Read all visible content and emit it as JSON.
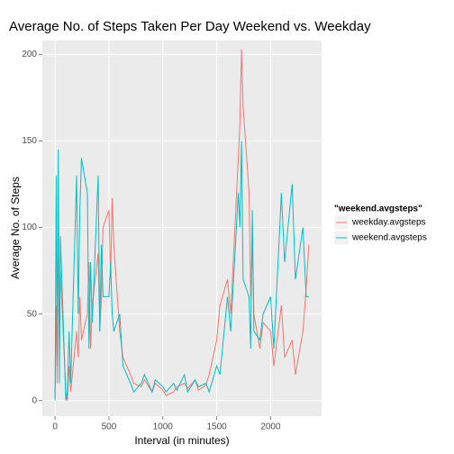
{
  "chart_data": {
    "type": "line",
    "title": "Average No. of Steps Taken Per Day Weekend vs. Weekday",
    "x_label": "Interval (in minutes)",
    "y_label": "Average No. of Steps",
    "legend_title": "\"weekend.avgsteps\"",
    "legend_position": "right",
    "grid": true,
    "x": [
      0,
      10,
      20,
      30,
      40,
      50,
      100,
      115,
      130,
      145,
      200,
      215,
      230,
      245,
      300,
      315,
      330,
      345,
      400,
      415,
      430,
      445,
      500,
      515,
      530,
      545,
      600,
      630,
      700,
      730,
      800,
      830,
      900,
      930,
      1000,
      1030,
      1100,
      1130,
      1200,
      1230,
      1300,
      1330,
      1400,
      1430,
      1500,
      1530,
      1600,
      1630,
      1700,
      1715,
      1730,
      1745,
      1800,
      1815,
      1830,
      1845,
      1900,
      1930,
      2000,
      2030,
      2100,
      2130,
      2200,
      2230,
      2300,
      2330,
      2355
    ],
    "series": [
      {
        "name": "weekday.avgsteps",
        "color": "#F8766D",
        "values": [
          2,
          55,
          10,
          108,
          30,
          75,
          5,
          0,
          20,
          5,
          40,
          25,
          60,
          35,
          50,
          80,
          30,
          55,
          85,
          40,
          60,
          100,
          110,
          70,
          117,
          90,
          40,
          25,
          15,
          10,
          8,
          12,
          5,
          10,
          6,
          3,
          5,
          8,
          10,
          7,
          12,
          6,
          9,
          15,
          35,
          55,
          70,
          50,
          140,
          160,
          203,
          170,
          120,
          60,
          95,
          50,
          30,
          45,
          40,
          20,
          55,
          25,
          35,
          15,
          40,
          65,
          90
        ]
      },
      {
        "name": "weekend.avgsteps",
        "color": "#00BFC4",
        "values": [
          0,
          130,
          20,
          145,
          10,
          95,
          0,
          5,
          40,
          10,
          130,
          50,
          110,
          140,
          120,
          30,
          80,
          45,
          130,
          40,
          90,
          60,
          60,
          80,
          50,
          40,
          50,
          20,
          10,
          5,
          10,
          15,
          5,
          12,
          8,
          5,
          10,
          6,
          15,
          5,
          12,
          8,
          10,
          5,
          20,
          15,
          60,
          40,
          120,
          100,
          150,
          70,
          60,
          30,
          110,
          40,
          35,
          50,
          60,
          30,
          120,
          80,
          125,
          70,
          100,
          60,
          60
        ]
      }
    ],
    "xlim": [
      -118,
      2473
    ],
    "xticks": [
      0,
      500,
      1000,
      1500,
      2000
    ],
    "ylim": [
      -9,
      208
    ],
    "yticks": [
      0,
      50,
      100,
      150,
      200
    ]
  }
}
